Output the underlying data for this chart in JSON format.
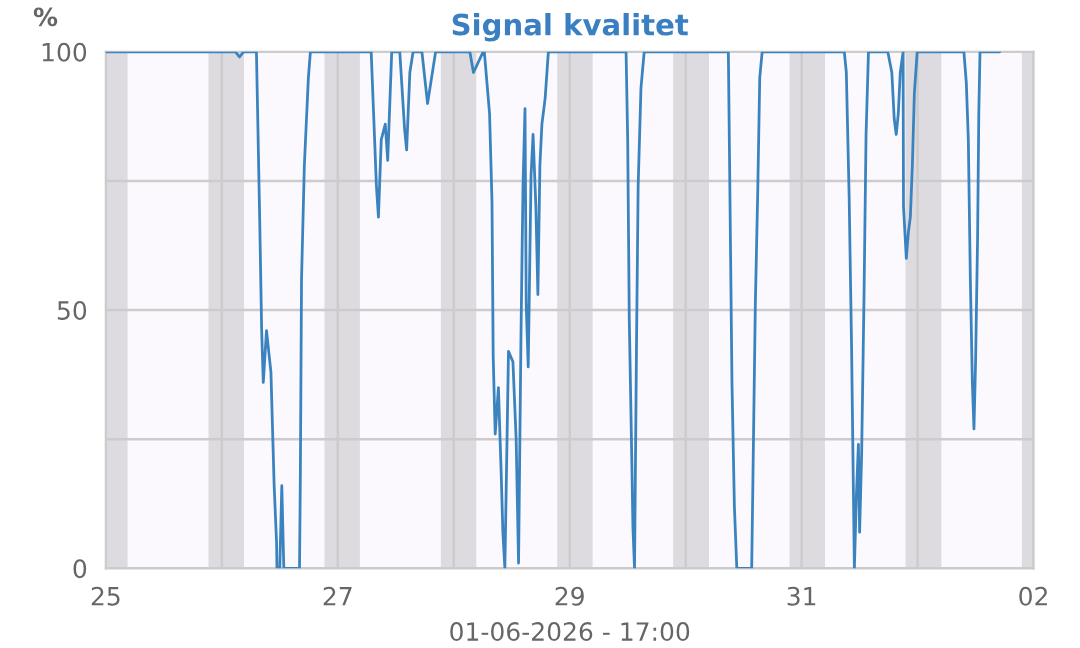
{
  "chart_data": {
    "type": "line",
    "title": "Signal kvalitet",
    "ylabel": "%",
    "xlabel": "01-06-2026 - 17:00",
    "x": [
      "2026-05-25T00:00",
      "2026-05-26T02:50",
      "2026-05-26T03:40",
      "2026-05-26T04:30",
      "2026-05-26T07:10",
      "2026-05-26T07:50",
      "2026-05-26T08:15",
      "2026-05-26T08:35",
      "2026-05-26T09:15",
      "2026-05-26T10:10",
      "2026-05-26T10:30",
      "2026-05-26T10:50",
      "2026-05-26T11:20",
      "2026-05-26T11:25",
      "2026-05-26T12:00",
      "2026-05-26T12:25",
      "2026-05-26T12:50",
      "2026-05-26T16:05",
      "2026-05-26T16:15",
      "2026-05-26T16:30",
      "2026-05-26T17:05",
      "2026-05-26T17:55",
      "2026-05-26T18:20",
      "2026-05-27T06:55",
      "2026-05-27T07:25",
      "2026-05-27T08:00",
      "2026-05-27T08:25",
      "2026-05-27T09:00",
      "2026-05-27T09:50",
      "2026-05-27T10:20",
      "2026-05-27T11:10",
      "2026-05-27T12:50",
      "2026-05-27T13:50",
      "2026-05-27T14:15",
      "2026-05-27T14:55",
      "2026-05-27T15:35",
      "2026-05-27T17:25",
      "2026-05-27T18:35",
      "2026-05-27T20:15",
      "2026-05-28T03:20",
      "2026-05-28T04:05",
      "2026-05-28T06:05",
      "2026-05-28T06:20",
      "2026-05-28T07:25",
      "2026-05-28T07:55",
      "2026-05-28T08:10",
      "2026-05-28T08:35",
      "2026-05-28T09:15",
      "2026-05-28T09:50",
      "2026-05-28T10:10",
      "2026-05-28T10:35",
      "2026-05-28T11:20",
      "2026-05-28T12:15",
      "2026-05-28T12:55",
      "2026-05-28T13:25",
      "2026-05-28T13:55",
      "2026-05-28T14:20",
      "2026-05-28T14:45",
      "2026-05-28T15:00",
      "2026-05-28T15:25",
      "2026-05-28T16:00",
      "2026-05-28T16:25",
      "2026-05-28T17:00",
      "2026-05-28T17:25",
      "2026-05-28T17:50",
      "2026-05-28T18:15",
      "2026-05-28T18:55",
      "2026-05-28T19:35",
      "2026-05-29T11:40",
      "2026-05-29T12:00",
      "2026-05-29T12:20",
      "2026-05-29T12:50",
      "2026-05-29T13:05",
      "2026-05-29T13:25",
      "2026-05-29T13:50",
      "2026-05-29T14:10",
      "2026-05-29T14:45",
      "2026-05-29T15:25",
      "2026-05-30T08:50",
      "2026-05-30T09:05",
      "2026-05-30T09:35",
      "2026-05-30T10:05",
      "2026-05-30T10:35",
      "2026-05-30T13:40",
      "2026-05-30T13:55",
      "2026-05-30T14:25",
      "2026-05-30T14:55",
      "2026-05-30T15:20",
      "2026-05-30T15:50",
      "2026-05-31T08:50",
      "2026-05-31T09:15",
      "2026-05-31T09:50",
      "2026-05-31T10:20",
      "2026-05-31T10:55",
      "2026-05-31T11:20",
      "2026-05-31T11:45",
      "2026-05-31T12:00",
      "2026-05-31T12:25",
      "2026-05-31T12:55",
      "2026-05-31T13:20",
      "2026-05-31T13:50",
      "2026-05-31T17:50",
      "2026-05-31T18:40",
      "2026-05-31T19:10",
      "2026-05-31T19:35",
      "2026-05-31T20:00",
      "2026-05-31T20:25",
      "2026-05-31T21:00",
      "2026-05-31T21:05",
      "2026-05-31T21:40",
      "2026-05-31T22:05",
      "2026-05-31T22:30",
      "2026-05-31T22:55",
      "2026-05-31T23:20",
      "2026-05-31T23:55",
      "2026-06-01T09:35",
      "2026-06-01T10:05",
      "2026-06-01T10:30",
      "2026-06-01T10:55",
      "2026-06-01T11:20",
      "2026-06-01T11:40",
      "2026-06-01T12:00",
      "2026-06-01T12:25",
      "2026-06-01T12:40",
      "2026-06-01T12:55",
      "2026-06-01T17:00"
    ],
    "series": [
      {
        "color": "#3a83bf",
        "values": [
          100,
          100,
          99,
          100,
          100,
          68,
          46,
          36,
          46,
          38,
          27,
          16,
          5,
          0,
          0,
          16,
          0,
          0,
          17,
          56,
          78,
          95,
          100,
          100,
          88,
          74,
          68,
          83,
          86,
          79,
          100,
          100,
          85,
          81,
          96,
          100,
          100,
          90,
          100,
          100,
          96,
          100,
          100,
          88,
          71,
          41,
          26,
          35,
          18,
          7,
          0,
          42,
          40,
          25,
          1,
          45,
          74,
          89,
          51,
          39,
          76,
          84,
          70,
          53,
          78,
          86,
          91,
          100,
          100,
          83,
          48,
          22,
          8,
          0,
          44,
          74,
          93,
          100,
          100,
          79,
          36,
          12,
          0,
          0,
          17,
          51,
          73,
          95,
          100,
          100,
          96,
          72,
          43,
          0,
          14,
          24,
          7,
          22,
          53,
          84,
          100,
          100,
          96,
          87,
          84,
          88,
          96,
          100,
          70,
          60,
          65,
          68,
          78,
          92,
          100,
          100,
          94,
          83,
          56,
          36,
          27,
          40,
          64,
          88,
          100,
          100
        ]
      }
    ],
    "xlim": [
      "2026-05-25T00:00",
      "2026-06-02T00:00"
    ],
    "xticks": [
      {
        "value": "2026-05-25",
        "label": "25"
      },
      {
        "value": "2026-05-26",
        "label": null
      },
      {
        "value": "2026-05-27",
        "label": "27"
      },
      {
        "value": "2026-05-28",
        "label": null
      },
      {
        "value": "2026-05-29",
        "label": "29"
      },
      {
        "value": "2026-05-30",
        "label": null
      },
      {
        "value": "2026-05-31",
        "label": "31"
      },
      {
        "value": "2026-06-01",
        "label": null
      },
      {
        "value": "2026-06-02",
        "label": "02"
      }
    ],
    "ylim": [
      0,
      100
    ],
    "yticks": [
      0,
      {
        "value": 25,
        "label": null
      },
      50,
      {
        "value": 75,
        "label": null
      },
      100
    ],
    "grid": true,
    "bands": [
      {
        "axis": "x",
        "from": "2026-05-25T00:00",
        "to": "2026-05-25T04:30",
        "color": "#dddbe0"
      },
      {
        "axis": "x",
        "from": "2026-05-25T21:15",
        "to": "2026-05-26T04:35",
        "color": "#dddbe0"
      },
      {
        "axis": "x",
        "from": "2026-05-26T21:15",
        "to": "2026-05-27T04:35",
        "color": "#dddbe0"
      },
      {
        "axis": "x",
        "from": "2026-05-27T21:20",
        "to": "2026-05-28T04:40",
        "color": "#dddbe0"
      },
      {
        "axis": "x",
        "from": "2026-05-28T21:25",
        "to": "2026-05-29T04:45",
        "color": "#dddbe0"
      },
      {
        "axis": "x",
        "from": "2026-05-29T21:25",
        "to": "2026-05-30T04:50",
        "color": "#dddbe0"
      },
      {
        "axis": "x",
        "from": "2026-05-30T21:30",
        "to": "2026-05-31T04:50",
        "color": "#dddbe0"
      },
      {
        "axis": "x",
        "from": "2026-05-31T21:30",
        "to": "2026-06-01T04:55",
        "color": "#dddbe0"
      },
      {
        "axis": "x",
        "from": "2026-06-01T21:35",
        "to": "2026-06-02T00:00",
        "color": "#dddbe0"
      }
    ]
  }
}
